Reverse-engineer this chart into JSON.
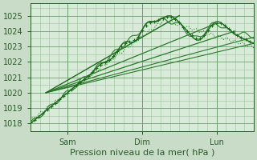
{
  "title": "",
  "xlabel": "Pression niveau de la mer( hPa )",
  "ylabel": "",
  "bg_color": "#c8dcc8",
  "plot_bg_color": "#d8ead8",
  "grid_color": "#a0c0a0",
  "line_color_main": "#1a6b1a",
  "line_color_light": "#2d8b2d",
  "ylim": [
    1017.5,
    1025.8
  ],
  "xlim": [
    0,
    72
  ],
  "yticks": [
    1018,
    1019,
    1020,
    1021,
    1022,
    1023,
    1024,
    1025
  ],
  "xtick_positions": [
    12,
    36,
    60
  ],
  "xtick_labels": [
    "Sam",
    "Dim",
    "Lun"
  ],
  "tick_fontsize": 7,
  "xlabel_fontsize": 8
}
